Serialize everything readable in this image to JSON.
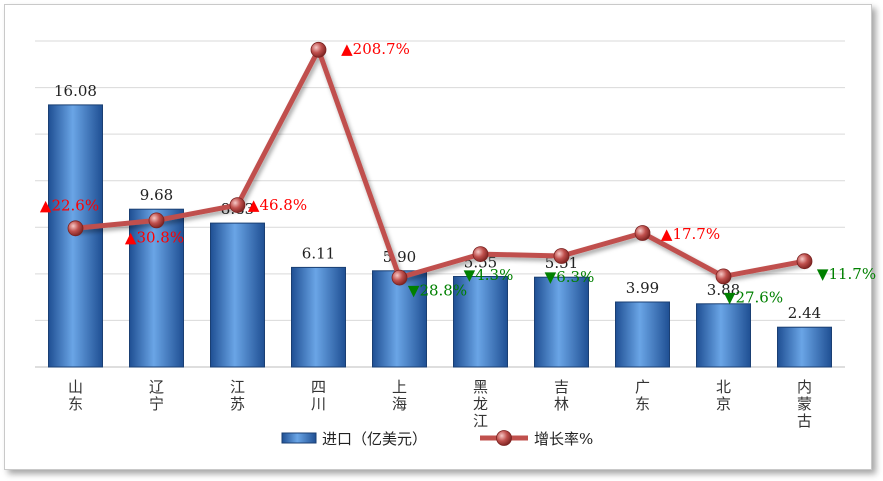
{
  "chart_data": {
    "type": "bar",
    "categories": [
      [
        "山",
        "东"
      ],
      [
        "辽",
        "宁"
      ],
      [
        "江",
        "苏"
      ],
      [
        "四",
        "川"
      ],
      [
        "上",
        "海"
      ],
      [
        "黑",
        "龙",
        "江"
      ],
      [
        "吉",
        "林"
      ],
      [
        "广",
        "东"
      ],
      [
        "北",
        "京"
      ],
      [
        "内",
        "蒙",
        "古"
      ]
    ],
    "series": [
      {
        "name": "进口（亿美元）",
        "type": "bar",
        "values": [
          16.08,
          9.68,
          8.83,
          6.11,
          5.9,
          5.55,
          5.51,
          3.99,
          3.88,
          2.44
        ],
        "labels": [
          "16.08",
          "9.68",
          "8.83",
          "6.11",
          "5.90",
          "5.55",
          "5.51",
          "3.99",
          "3.88",
          "2.44"
        ],
        "color": "#3a7ac8"
      },
      {
        "name": "增长率%",
        "type": "line",
        "values": [
          22.6,
          30.8,
          46.8,
          208.7,
          -28.8,
          -4.3,
          -6.3,
          17.7,
          -27.6,
          -11.7
        ],
        "labels": [
          "22.6%",
          "30.8%",
          "46.8%",
          "208.7%",
          "28.8%",
          "4.3%",
          "6.3%",
          "17.7%",
          "27.6%",
          "11.7%"
        ],
        "color": "#c0504d"
      }
    ],
    "markers": {
      "up": "▲",
      "down": "▼",
      "up_color": "#ff0000",
      "down_color": "#008000"
    },
    "grid": true,
    "legend": "bottom",
    "axes": "hidden"
  }
}
